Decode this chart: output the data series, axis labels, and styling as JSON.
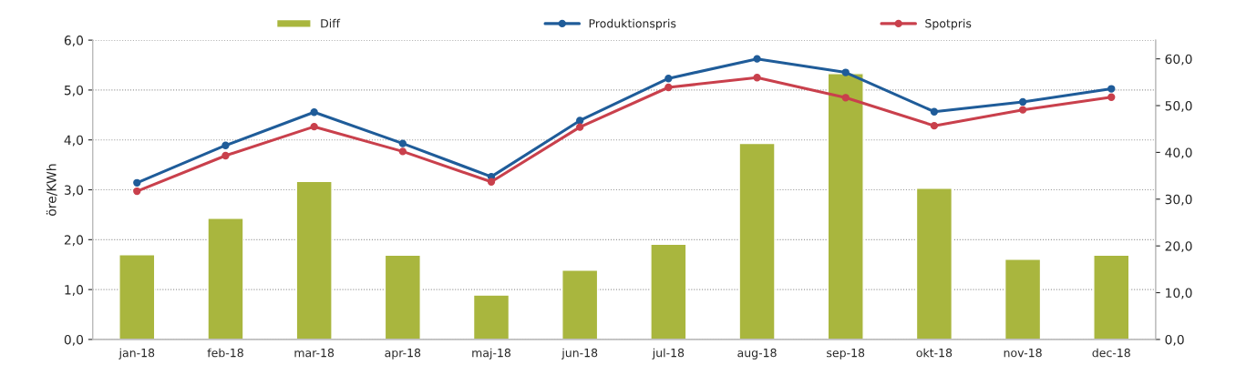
{
  "chart_data": {
    "type": "bar",
    "ylabel": "öre/KWh",
    "categories": [
      "jan-18",
      "feb-18",
      "mar-18",
      "apr-18",
      "maj-18",
      "jun-18",
      "jul-18",
      "aug-18",
      "sep-18",
      "okt-18",
      "nov-18",
      "dec-18"
    ],
    "series": [
      {
        "name": "Diff",
        "color": "#a9b63e",
        "values": [
          1.7,
          2.43,
          3.17,
          1.69,
          0.89,
          1.39,
          1.91,
          3.93,
          5.33,
          3.03,
          1.61,
          1.69
        ]
      },
      {
        "name": "Produktionspris",
        "type": "line",
        "axis": "y2",
        "color": "#1f5c99",
        "marker": "circle",
        "values": [
          33.5,
          41.5,
          48.6,
          41.9,
          34.8,
          46.8,
          55.8,
          60.0,
          57.1,
          48.7,
          50.8,
          53.6
        ]
      },
      {
        "name": "Spotpris",
        "type": "line",
        "axis": "y2",
        "color": "#c9404c",
        "marker": "circle",
        "values": [
          31.7,
          39.3,
          45.5,
          40.2,
          33.7,
          45.4,
          53.9,
          56.0,
          51.7,
          45.7,
          49.1,
          51.8
        ]
      }
    ],
    "ylim": [
      0,
      6
    ],
    "yticks": [
      {
        "value": 0,
        "label": "0,0"
      },
      {
        "value": 1,
        "label": "1,0"
      },
      {
        "value": 2,
        "label": "2,0"
      },
      {
        "value": 3,
        "label": "3,0"
      },
      {
        "value": 4,
        "label": "4,0"
      },
      {
        "value": 5,
        "label": "5,0"
      },
      {
        "value": 6,
        "label": "6,0"
      }
    ],
    "y2lim": [
      0,
      64
    ],
    "y2ticks": [
      {
        "value": 0,
        "label": "0,0"
      },
      {
        "value": 10,
        "label": "10,0"
      },
      {
        "value": 20,
        "label": "20,0"
      },
      {
        "value": 30,
        "label": "30,0"
      },
      {
        "value": 40,
        "label": "40,0"
      },
      {
        "value": 50,
        "label": "50,0"
      },
      {
        "value": 60,
        "label": "60,0"
      }
    ],
    "grid": "y",
    "legend": "top"
  }
}
